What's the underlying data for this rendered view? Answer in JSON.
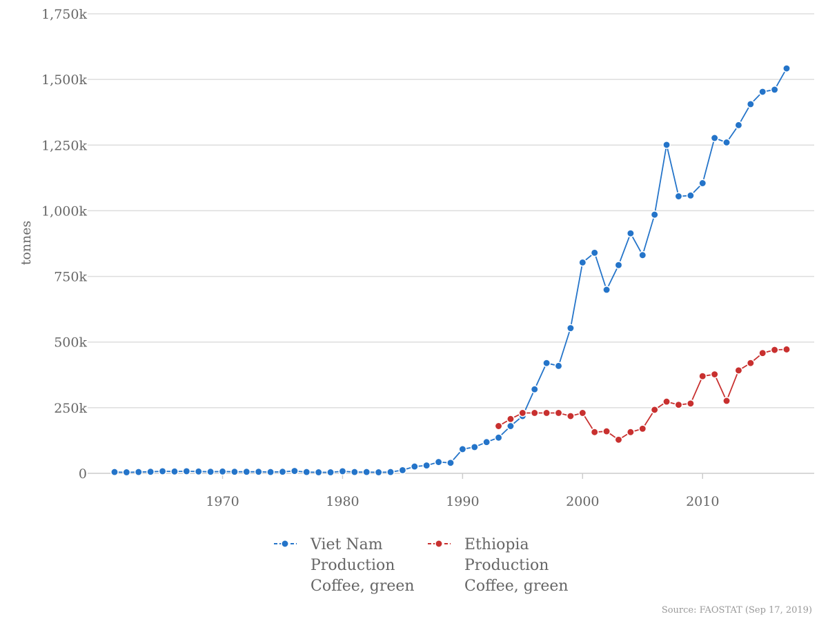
{
  "chart_data": {
    "type": "line",
    "title": "",
    "ylabel": "tonnes",
    "xlabel": "",
    "ylim": [
      0,
      1750000
    ],
    "xlim": [
      1961,
      2017
    ],
    "y_ticks": [
      0,
      250000,
      500000,
      750000,
      1000000,
      1250000,
      1500000,
      1750000
    ],
    "y_tick_labels": [
      "0",
      "250k",
      "500k",
      "750k",
      "1,000k",
      "1,250k",
      "1,500k",
      "1,750k"
    ],
    "x_ticks": [
      1970,
      1980,
      1990,
      2000,
      2010
    ],
    "x_tick_labels": [
      "1970",
      "1980",
      "1990",
      "2000",
      "2010"
    ],
    "grid": true,
    "legend_position": "bottom",
    "series": [
      {
        "name": "Viet Nam Production Coffee, green",
        "legend_lines": [
          "Viet Nam",
          "Production",
          "Coffee, green"
        ],
        "color": "#2474c9",
        "x": [
          1961,
          1962,
          1963,
          1964,
          1965,
          1966,
          1967,
          1968,
          1969,
          1970,
          1971,
          1972,
          1973,
          1974,
          1975,
          1976,
          1977,
          1978,
          1979,
          1980,
          1981,
          1982,
          1983,
          1984,
          1985,
          1986,
          1987,
          1988,
          1989,
          1990,
          1991,
          1992,
          1993,
          1994,
          1995,
          1996,
          1997,
          1998,
          1999,
          2000,
          2001,
          2002,
          2003,
          2004,
          2005,
          2006,
          2007,
          2008,
          2009,
          2010,
          2011,
          2012,
          2013,
          2014,
          2015,
          2016,
          2017
        ],
        "values": [
          5000,
          4000,
          5000,
          6000,
          8000,
          7000,
          8000,
          7000,
          6000,
          7000,
          6000,
          6000,
          6000,
          5000,
          6000,
          9000,
          5000,
          4000,
          4000,
          8000,
          5000,
          5000,
          4000,
          5000,
          12000,
          26000,
          30000,
          43000,
          40000,
          92000,
          100000,
          119000,
          136000,
          180000,
          218000,
          320000,
          420000,
          409000,
          553000,
          803000,
          840000,
          699000,
          793000,
          914000,
          831000,
          985000,
          1251000,
          1055000,
          1058000,
          1105000,
          1277000,
          1260000,
          1326000,
          1406000,
          1453000,
          1461000,
          1542000
        ]
      },
      {
        "name": "Ethiopia Production Coffee, green",
        "legend_lines": [
          "Ethiopia",
          "Production",
          "Coffee, green"
        ],
        "color": "#c8302f",
        "x": [
          1993,
          1994,
          1995,
          1996,
          1997,
          1998,
          1999,
          2000,
          2001,
          2002,
          2003,
          2004,
          2005,
          2006,
          2007,
          2008,
          2009,
          2010,
          2011,
          2012,
          2013,
          2014,
          2015,
          2016,
          2017
        ],
        "values": [
          180000,
          207000,
          230000,
          230000,
          230000,
          230000,
          218000,
          230000,
          157000,
          160000,
          128000,
          157000,
          170000,
          242000,
          273000,
          261000,
          266000,
          370000,
          377000,
          276000,
          392000,
          420000,
          458000,
          470000,
          472000
        ]
      }
    ]
  },
  "source": "Source: FAOSTAT (Sep 17, 2019)"
}
